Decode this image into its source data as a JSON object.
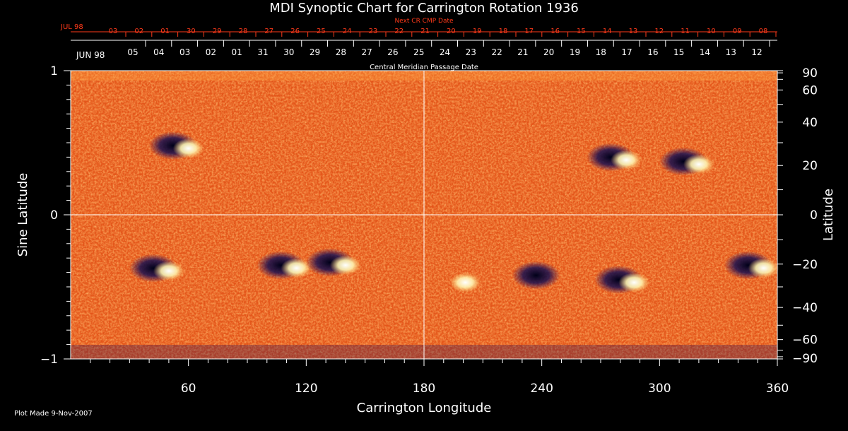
{
  "chart_data": {
    "type": "heatmap",
    "title": "MDI Synoptic Chart for Carrington Rotation 1936",
    "xlabel": "Carrington Longitude",
    "ylabel_left": "Sine Latitude",
    "ylabel_right": "Latitude",
    "xlim": [
      0,
      360
    ],
    "ylim": [
      -1,
      1
    ],
    "x_ticks": [
      "60",
      "120",
      "180",
      "240",
      "300",
      "360"
    ],
    "x_tick_values": [
      60,
      120,
      180,
      240,
      300,
      360
    ],
    "y_left_ticks": [
      "1",
      "0",
      "−1"
    ],
    "y_left_tick_values": [
      1,
      0,
      -1
    ],
    "y_right_ticks": [
      "90",
      "60",
      "40",
      "20",
      "0",
      "−20",
      "−40",
      "−60",
      "−90"
    ],
    "y_right_tick_values": [
      90,
      60,
      40,
      20,
      0,
      -20,
      -40,
      -60,
      -90
    ],
    "top_axis_outer": {
      "label": "Next CR CMP Date",
      "month_label": "JUL 98",
      "dates": [
        "03",
        "02",
        "01",
        "30",
        "29",
        "28",
        "27",
        "26",
        "25",
        "24",
        "23",
        "22",
        "21",
        "20",
        "19",
        "18",
        "17",
        "16",
        "15",
        "14",
        "13",
        "12",
        "11",
        "10",
        "09",
        "08"
      ]
    },
    "top_axis_inner": {
      "label": "Central Meridian Passage Date",
      "month_label": "JUN 98",
      "dates": [
        "05",
        "04",
        "03",
        "02",
        "01",
        "31",
        "30",
        "29",
        "28",
        "27",
        "26",
        "25",
        "24",
        "23",
        "22",
        "21",
        "20",
        "19",
        "18",
        "17",
        "16",
        "15",
        "14",
        "13",
        "12"
      ]
    },
    "grid": "crosshair at longitude 180 and latitude 0",
    "colors": {
      "background": "#e85a14",
      "positive": "#ffffff",
      "negative": "#0a0a30",
      "outer_axis": "#ff3a1a",
      "axis": "#ffffff"
    },
    "active_regions": [
      {
        "lon": 55,
        "sinlat": 0.48,
        "polarity": "bipolar"
      },
      {
        "lon": 45,
        "sinlat": -0.37,
        "polarity": "bipolar"
      },
      {
        "lon": 110,
        "sinlat": -0.35,
        "polarity": "bipolar"
      },
      {
        "lon": 135,
        "sinlat": -0.33,
        "polarity": "bipolar"
      },
      {
        "lon": 278,
        "sinlat": 0.4,
        "polarity": "bipolar"
      },
      {
        "lon": 315,
        "sinlat": 0.37,
        "polarity": "bipolar"
      },
      {
        "lon": 282,
        "sinlat": -0.45,
        "polarity": "bipolar"
      },
      {
        "lon": 348,
        "sinlat": -0.35,
        "polarity": "bipolar"
      },
      {
        "lon": 240,
        "sinlat": -0.42,
        "polarity": "negative"
      },
      {
        "lon": 196,
        "sinlat": -0.45,
        "polarity": "positive"
      }
    ]
  },
  "footer": {
    "plot_made": "Plot Made  9-Nov-2007"
  }
}
